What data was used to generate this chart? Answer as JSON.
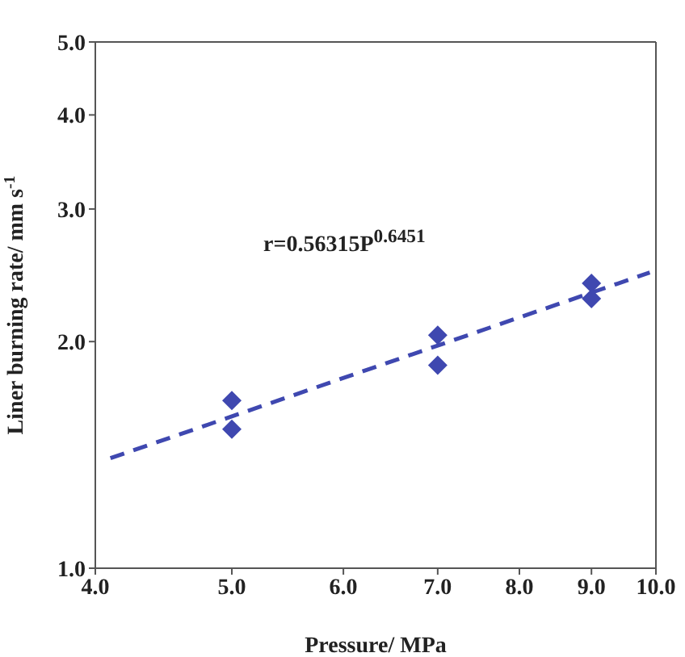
{
  "chart_data": {
    "type": "scatter",
    "xlabel": "Pressure/ MPa",
    "ylabel": "Liner burning rate/ mm s$^{-1}$",
    "log": "xy",
    "xlim": [
      4,
      10
    ],
    "ylim": [
      1,
      5
    ],
    "xticks": [
      {
        "value": 4,
        "label": "4.0"
      },
      {
        "value": 5,
        "label": "5.0"
      },
      {
        "value": 6,
        "label": "6.0"
      },
      {
        "value": 7,
        "label": "7.0"
      },
      {
        "value": 8,
        "label": "8.0"
      },
      {
        "value": 9,
        "label": "9.0"
      },
      {
        "value": 10,
        "label": "10.0"
      }
    ],
    "yticks": [
      {
        "value": 1,
        "label": "1.0"
      },
      {
        "value": 2,
        "label": "2.0"
      },
      {
        "value": 3,
        "label": "3.0"
      },
      {
        "value": 4,
        "label": "4.0"
      },
      {
        "value": 5,
        "label": "5.0"
      }
    ],
    "annotations": [
      "r=0.56315P$^{0.6451}$"
    ],
    "series": [
      {
        "marker": "diamond",
        "color": "#3f48b0",
        "x": [
          5,
          5,
          7,
          7,
          9,
          9
        ],
        "values": [
          1.67,
          1.53,
          2.04,
          1.86,
          2.39,
          2.28
        ]
      },
      {
        "type": "line",
        "line_style": "dashed",
        "color": "#3f48b0",
        "x": [
          4.1,
          9.9
        ],
        "values": [
          1.4,
          2.47
        ]
      }
    ]
  }
}
